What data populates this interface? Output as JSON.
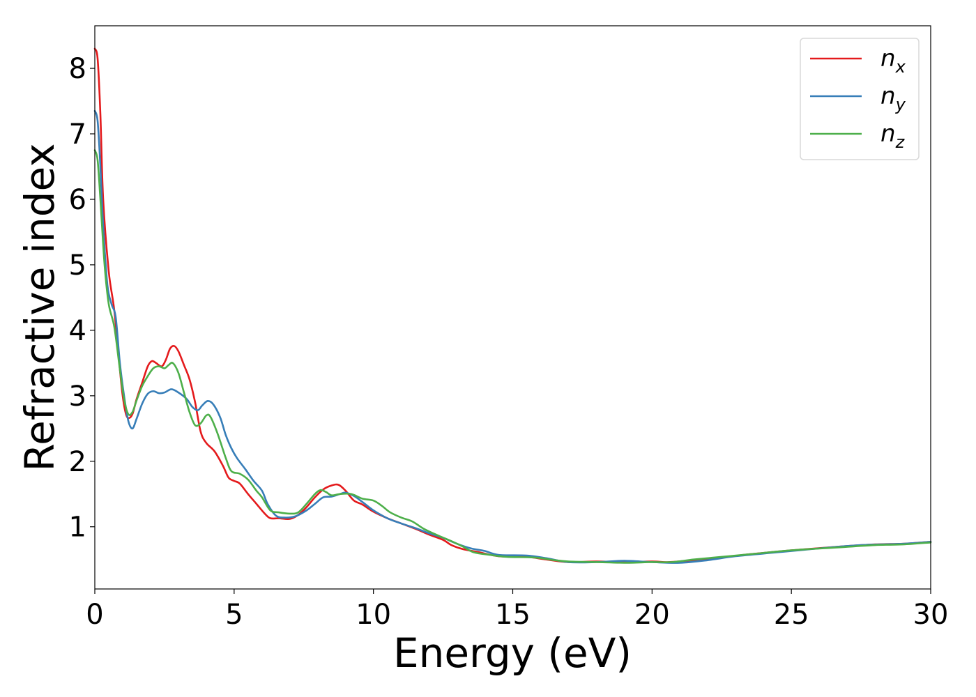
{
  "chart_data": {
    "type": "line",
    "title": "",
    "xlabel": "Energy (eV)",
    "ylabel": "Refractive index",
    "xlim": [
      0,
      30
    ],
    "ylim": [
      0.05,
      8.65
    ],
    "xticks": [
      0,
      5,
      10,
      15,
      20,
      25,
      30
    ],
    "xtick_labels": [
      "0",
      "5",
      "10",
      "15",
      "20",
      "25",
      "30"
    ],
    "yticks": [
      1,
      2,
      3,
      4,
      5,
      6,
      7,
      8
    ],
    "ytick_labels": [
      "1",
      "2",
      "3",
      "4",
      "5",
      "6",
      "7",
      "8"
    ],
    "grid": false,
    "legend_position": "top-right",
    "series": [
      {
        "name": "n",
        "subscript": "x",
        "color": "#e41a1c",
        "points": [
          [
            0,
            8.3
          ],
          [
            0.1,
            8.15
          ],
          [
            0.2,
            7.3
          ],
          [
            0.3,
            6.0
          ],
          [
            0.5,
            4.9
          ],
          [
            0.7,
            4.3
          ],
          [
            0.9,
            3.4
          ],
          [
            1.0,
            3.0
          ],
          [
            1.1,
            2.75
          ],
          [
            1.2,
            2.66
          ],
          [
            1.35,
            2.72
          ],
          [
            1.5,
            2.95
          ],
          [
            1.7,
            3.2
          ],
          [
            1.9,
            3.45
          ],
          [
            2.05,
            3.53
          ],
          [
            2.2,
            3.5
          ],
          [
            2.4,
            3.45
          ],
          [
            2.55,
            3.55
          ],
          [
            2.7,
            3.72
          ],
          [
            2.85,
            3.76
          ],
          [
            3.0,
            3.68
          ],
          [
            3.2,
            3.47
          ],
          [
            3.4,
            3.25
          ],
          [
            3.6,
            2.9
          ],
          [
            3.8,
            2.45
          ],
          [
            4.0,
            2.28
          ],
          [
            4.3,
            2.15
          ],
          [
            4.6,
            1.93
          ],
          [
            4.8,
            1.75
          ],
          [
            5.0,
            1.7
          ],
          [
            5.2,
            1.66
          ],
          [
            5.5,
            1.5
          ],
          [
            5.8,
            1.35
          ],
          [
            6.1,
            1.2
          ],
          [
            6.3,
            1.13
          ],
          [
            6.6,
            1.13
          ],
          [
            7.0,
            1.12
          ],
          [
            7.3,
            1.18
          ],
          [
            7.6,
            1.3
          ],
          [
            7.9,
            1.45
          ],
          [
            8.2,
            1.57
          ],
          [
            8.5,
            1.63
          ],
          [
            8.75,
            1.64
          ],
          [
            9.0,
            1.55
          ],
          [
            9.3,
            1.4
          ],
          [
            9.6,
            1.34
          ],
          [
            10.0,
            1.23
          ],
          [
            10.5,
            1.13
          ],
          [
            11.0,
            1.05
          ],
          [
            11.5,
            0.97
          ],
          [
            12.0,
            0.88
          ],
          [
            12.5,
            0.8
          ],
          [
            12.8,
            0.72
          ],
          [
            13.2,
            0.66
          ],
          [
            13.8,
            0.61
          ],
          [
            14.5,
            0.55
          ],
          [
            15.5,
            0.54
          ],
          [
            16.2,
            0.5
          ],
          [
            17.0,
            0.46
          ],
          [
            18.0,
            0.47
          ],
          [
            19.0,
            0.46
          ],
          [
            20.0,
            0.47
          ],
          [
            20.6,
            0.46
          ],
          [
            21.5,
            0.49
          ],
          [
            22.5,
            0.53
          ],
          [
            23.5,
            0.58
          ],
          [
            25.0,
            0.64
          ],
          [
            26.5,
            0.69
          ],
          [
            28.0,
            0.73
          ],
          [
            29.0,
            0.74
          ],
          [
            30,
            0.77
          ]
        ]
      },
      {
        "name": "n",
        "subscript": "y",
        "color": "#377eb8",
        "points": [
          [
            0,
            7.35
          ],
          [
            0.1,
            7.2
          ],
          [
            0.2,
            6.5
          ],
          [
            0.3,
            5.6
          ],
          [
            0.45,
            4.7
          ],
          [
            0.6,
            4.4
          ],
          [
            0.75,
            4.2
          ],
          [
            0.9,
            3.5
          ],
          [
            1.05,
            3.0
          ],
          [
            1.2,
            2.62
          ],
          [
            1.35,
            2.5
          ],
          [
            1.5,
            2.65
          ],
          [
            1.7,
            2.88
          ],
          [
            1.9,
            3.03
          ],
          [
            2.1,
            3.07
          ],
          [
            2.3,
            3.04
          ],
          [
            2.5,
            3.05
          ],
          [
            2.75,
            3.1
          ],
          [
            3.0,
            3.05
          ],
          [
            3.3,
            2.95
          ],
          [
            3.5,
            2.83
          ],
          [
            3.7,
            2.78
          ],
          [
            3.85,
            2.85
          ],
          [
            4.05,
            2.92
          ],
          [
            4.25,
            2.87
          ],
          [
            4.5,
            2.67
          ],
          [
            4.7,
            2.4
          ],
          [
            4.9,
            2.2
          ],
          [
            5.1,
            2.05
          ],
          [
            5.4,
            1.88
          ],
          [
            5.7,
            1.7
          ],
          [
            6.0,
            1.55
          ],
          [
            6.2,
            1.35
          ],
          [
            6.5,
            1.17
          ],
          [
            6.8,
            1.14
          ],
          [
            7.2,
            1.16
          ],
          [
            7.6,
            1.25
          ],
          [
            7.9,
            1.35
          ],
          [
            8.2,
            1.45
          ],
          [
            8.5,
            1.46
          ],
          [
            8.8,
            1.5
          ],
          [
            9.0,
            1.52
          ],
          [
            9.3,
            1.47
          ],
          [
            9.6,
            1.38
          ],
          [
            10.0,
            1.25
          ],
          [
            10.5,
            1.13
          ],
          [
            11.0,
            1.05
          ],
          [
            11.5,
            0.98
          ],
          [
            12.0,
            0.9
          ],
          [
            12.5,
            0.83
          ],
          [
            13.0,
            0.74
          ],
          [
            13.5,
            0.67
          ],
          [
            14.0,
            0.63
          ],
          [
            14.5,
            0.57
          ],
          [
            15.5,
            0.56
          ],
          [
            16.2,
            0.52
          ],
          [
            17.0,
            0.46
          ],
          [
            18.0,
            0.46
          ],
          [
            19.0,
            0.48
          ],
          [
            20.0,
            0.46
          ],
          [
            21.0,
            0.45
          ],
          [
            22.0,
            0.49
          ],
          [
            23.0,
            0.55
          ],
          [
            24.5,
            0.61
          ],
          [
            26.0,
            0.67
          ],
          [
            27.5,
            0.72
          ],
          [
            29.0,
            0.74
          ],
          [
            30,
            0.77
          ]
        ]
      },
      {
        "name": "n",
        "subscript": "z",
        "color": "#4daf4a",
        "points": [
          [
            0,
            6.75
          ],
          [
            0.1,
            6.6
          ],
          [
            0.2,
            6.0
          ],
          [
            0.35,
            5.0
          ],
          [
            0.5,
            4.4
          ],
          [
            0.7,
            4.05
          ],
          [
            0.9,
            3.4
          ],
          [
            1.05,
            2.95
          ],
          [
            1.2,
            2.72
          ],
          [
            1.35,
            2.75
          ],
          [
            1.5,
            2.93
          ],
          [
            1.7,
            3.15
          ],
          [
            1.9,
            3.3
          ],
          [
            2.1,
            3.42
          ],
          [
            2.3,
            3.45
          ],
          [
            2.5,
            3.42
          ],
          [
            2.65,
            3.47
          ],
          [
            2.8,
            3.5
          ],
          [
            3.0,
            3.35
          ],
          [
            3.2,
            3.05
          ],
          [
            3.4,
            2.75
          ],
          [
            3.6,
            2.55
          ],
          [
            3.8,
            2.58
          ],
          [
            4.0,
            2.7
          ],
          [
            4.15,
            2.68
          ],
          [
            4.4,
            2.43
          ],
          [
            4.7,
            2.05
          ],
          [
            4.9,
            1.85
          ],
          [
            5.2,
            1.81
          ],
          [
            5.5,
            1.72
          ],
          [
            5.8,
            1.55
          ],
          [
            6.0,
            1.45
          ],
          [
            6.3,
            1.25
          ],
          [
            6.6,
            1.22
          ],
          [
            7.0,
            1.2
          ],
          [
            7.3,
            1.22
          ],
          [
            7.6,
            1.35
          ],
          [
            7.9,
            1.5
          ],
          [
            8.1,
            1.56
          ],
          [
            8.3,
            1.53
          ],
          [
            8.5,
            1.48
          ],
          [
            8.8,
            1.5
          ],
          [
            9.2,
            1.5
          ],
          [
            9.6,
            1.43
          ],
          [
            10.0,
            1.4
          ],
          [
            10.3,
            1.32
          ],
          [
            10.6,
            1.22
          ],
          [
            11.0,
            1.14
          ],
          [
            11.4,
            1.08
          ],
          [
            11.8,
            0.97
          ],
          [
            12.3,
            0.87
          ],
          [
            12.8,
            0.78
          ],
          [
            13.2,
            0.7
          ],
          [
            13.6,
            0.61
          ],
          [
            14.2,
            0.57
          ],
          [
            14.8,
            0.54
          ],
          [
            15.8,
            0.53
          ],
          [
            16.5,
            0.49
          ],
          [
            17.0,
            0.47
          ],
          [
            18.0,
            0.46
          ],
          [
            19.0,
            0.45
          ],
          [
            20.0,
            0.46
          ],
          [
            20.7,
            0.46
          ],
          [
            21.5,
            0.5
          ],
          [
            22.5,
            0.54
          ],
          [
            23.5,
            0.58
          ],
          [
            25.0,
            0.64
          ],
          [
            26.5,
            0.68
          ],
          [
            28.0,
            0.72
          ],
          [
            29.0,
            0.73
          ],
          [
            30,
            0.76
          ]
        ]
      }
    ]
  }
}
